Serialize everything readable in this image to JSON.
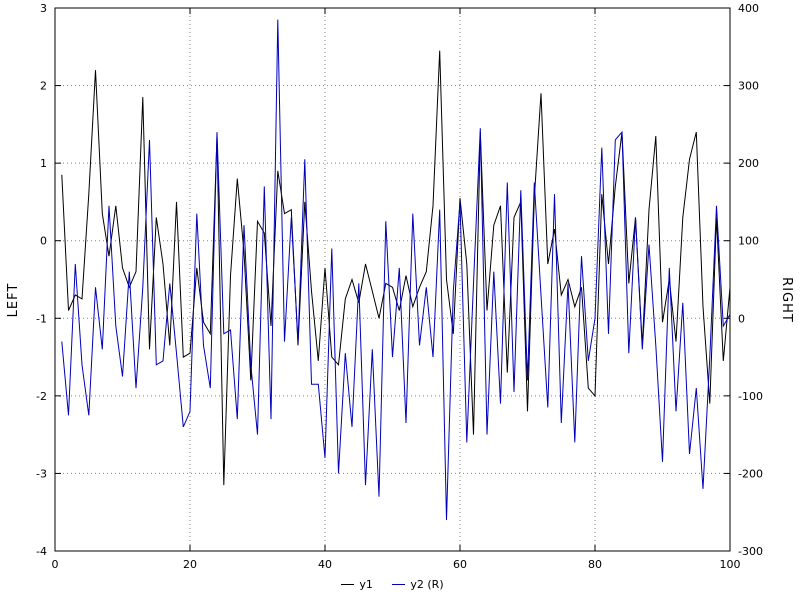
{
  "chart_data": {
    "type": "line",
    "title": "",
    "grid": true,
    "legend_position": "bottom-center",
    "x_axis": {
      "min": 0,
      "max": 100,
      "ticks": [
        0,
        20,
        40,
        60,
        80,
        100
      ]
    },
    "left_axis": {
      "label": "LEFT",
      "min": -4,
      "max": 3,
      "ticks": [
        -4,
        -3,
        -2,
        -1,
        0,
        1,
        2,
        3
      ]
    },
    "right_axis": {
      "label": "RIGHT",
      "min": -300,
      "max": 400,
      "ticks": [
        -300,
        -200,
        -100,
        0,
        100,
        200,
        300,
        400
      ]
    },
    "x": [
      1,
      2,
      3,
      4,
      5,
      6,
      7,
      8,
      9,
      10,
      11,
      12,
      13,
      14,
      15,
      16,
      17,
      18,
      19,
      20,
      21,
      22,
      23,
      24,
      25,
      26,
      27,
      28,
      29,
      30,
      31,
      32,
      33,
      34,
      35,
      36,
      37,
      38,
      39,
      40,
      41,
      42,
      43,
      44,
      45,
      46,
      47,
      48,
      49,
      50,
      51,
      52,
      53,
      54,
      55,
      56,
      57,
      58,
      59,
      60,
      61,
      62,
      63,
      64,
      65,
      66,
      67,
      68,
      69,
      70,
      71,
      72,
      73,
      74,
      75,
      76,
      77,
      78,
      79,
      80,
      81,
      82,
      83,
      84,
      85,
      86,
      87,
      88,
      89,
      90,
      91,
      92,
      93,
      94,
      95,
      96,
      97,
      98,
      99,
      100
    ],
    "series": [
      {
        "name": "y1",
        "axis": "left",
        "color": "#000000",
        "values": [
          0.85,
          -0.9,
          -0.7,
          -0.75,
          0.6,
          2.2,
          0.35,
          -0.2,
          0.45,
          -0.35,
          -0.6,
          -0.4,
          1.85,
          -1.4,
          0.3,
          -0.3,
          -1.35,
          0.5,
          -1.5,
          -1.45,
          -0.35,
          -1.05,
          -1.2,
          1.35,
          -3.15,
          -0.45,
          0.8,
          -0.15,
          -1.8,
          0.25,
          0.1,
          -1.1,
          0.9,
          0.35,
          0.4,
          -1.35,
          0.5,
          -0.65,
          -1.55,
          -0.35,
          -1.5,
          -1.6,
          -0.75,
          -0.5,
          -0.8,
          -0.3,
          -0.65,
          -1.0,
          -0.55,
          -0.6,
          -0.9,
          -0.45,
          -0.85,
          -0.6,
          -0.4,
          0.45,
          2.45,
          -0.5,
          -1.2,
          0.55,
          -0.3,
          -2.5,
          1.4,
          -0.9,
          0.2,
          0.45,
          -1.7,
          0.3,
          0.5,
          -2.2,
          0.55,
          1.9,
          -0.3,
          0.15,
          -0.7,
          -0.5,
          -0.85,
          -0.6,
          -1.9,
          -2.0,
          0.6,
          -0.3,
          0.7,
          1.4,
          -0.55,
          0.3,
          -1.35,
          0.4,
          1.35,
          -1.05,
          -0.5,
          -1.3,
          0.3,
          1.05,
          1.4,
          -0.85,
          -2.1,
          0.3,
          -1.55,
          -0.6
        ]
      },
      {
        "name": "y2 (R)",
        "axis": "right",
        "color": "#0000bb",
        "values": [
          -30,
          -125,
          70,
          -60,
          -125,
          40,
          -40,
          145,
          -10,
          -75,
          60,
          -90,
          40,
          230,
          -60,
          -55,
          45,
          -45,
          -140,
          -120,
          135,
          -35,
          -90,
          240,
          -20,
          -15,
          -130,
          120,
          -60,
          -150,
          170,
          -130,
          385,
          -30,
          130,
          -30,
          205,
          -85,
          -85,
          -180,
          90,
          -200,
          -45,
          -140,
          45,
          -215,
          -40,
          -230,
          125,
          -50,
          65,
          -135,
          135,
          -35,
          40,
          -50,
          140,
          -260,
          35,
          150,
          -160,
          45,
          245,
          -150,
          60,
          -110,
          175,
          -95,
          165,
          -80,
          175,
          30,
          -115,
          160,
          -135,
          45,
          -160,
          80,
          -55,
          0,
          220,
          -20,
          230,
          240,
          -45,
          130,
          -40,
          95,
          -35,
          -185,
          65,
          -120,
          20,
          -175,
          -90,
          -220,
          -50,
          145,
          -10,
          5
        ]
      }
    ]
  },
  "colors": {
    "grid": "#808080",
    "border": "#000000",
    "background": "#ffffff"
  }
}
